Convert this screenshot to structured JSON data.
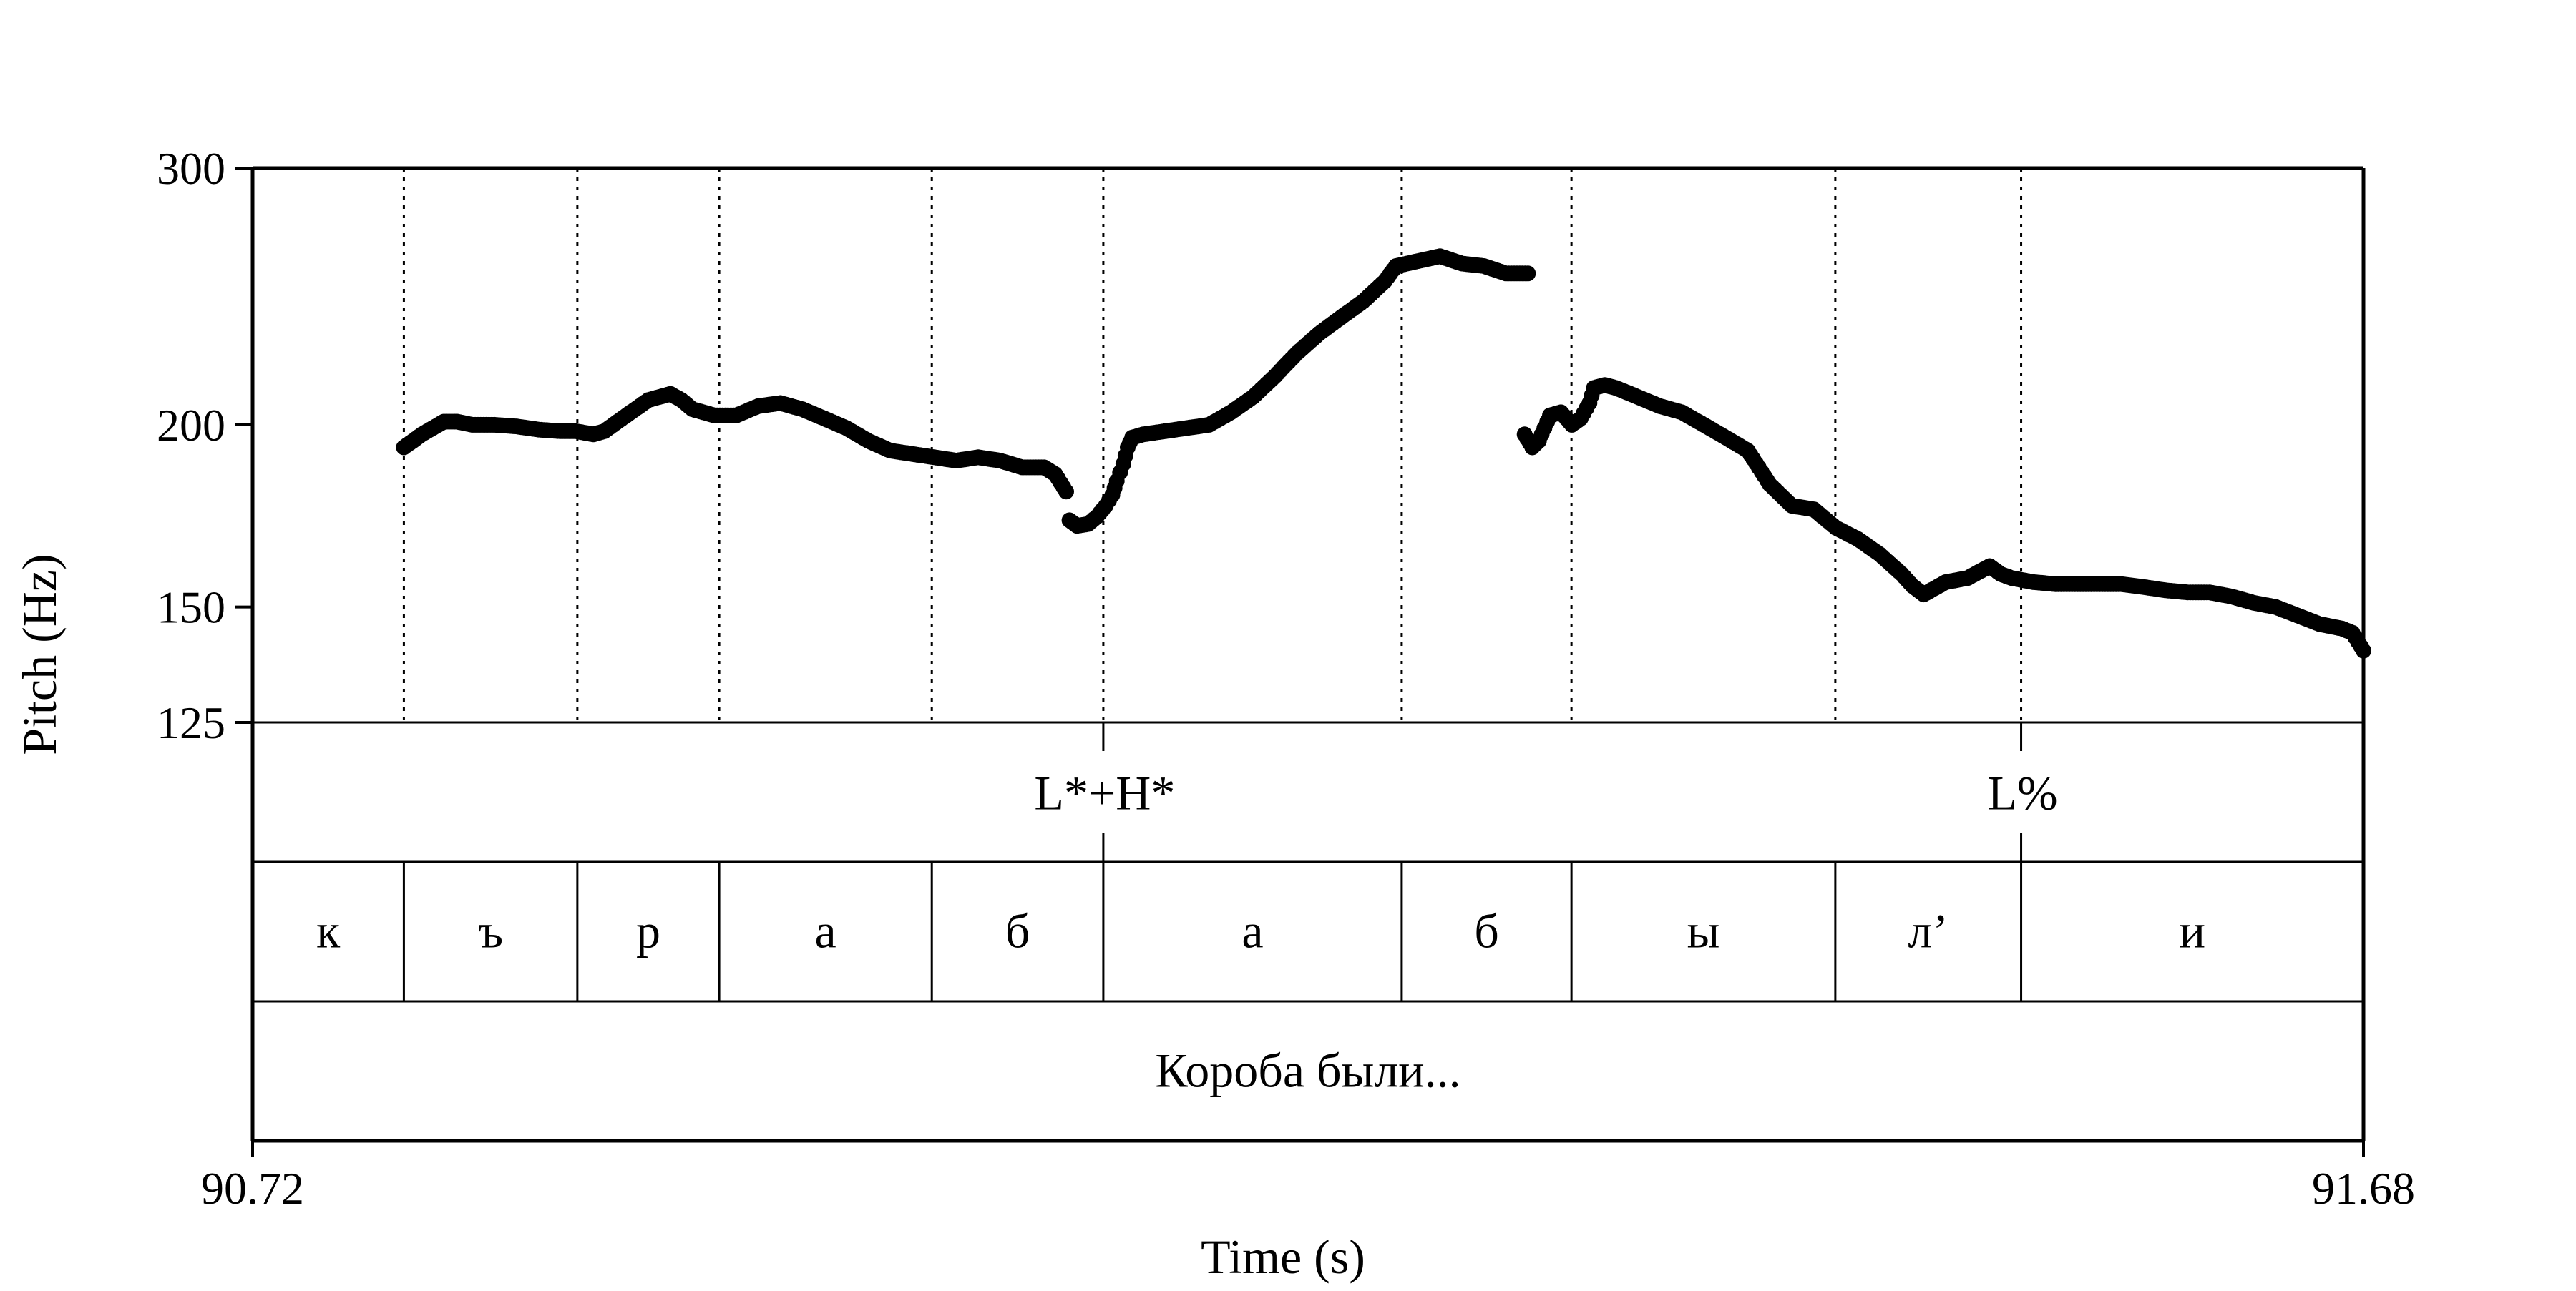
{
  "chart_data": {
    "type": "scatter",
    "xlabel": "Time (s)",
    "ylabel": "Pitch (Hz)",
    "xlim": [
      90.72,
      91.68
    ],
    "ylim": [
      125,
      300
    ],
    "y_scale": "log",
    "x_ticks": [
      "90.72",
      "91.68"
    ],
    "y_ticks": [
      {
        "value": 300,
        "label": "300"
      },
      {
        "value": 200,
        "label": "200"
      },
      {
        "value": 150,
        "label": "150"
      },
      {
        "value": 125,
        "label": "125"
      }
    ],
    "boundaries": [
      90.7888,
      90.8677,
      90.9322,
      91.0289,
      91.1069,
      91.2426,
      91.3198,
      91.4398,
      91.5243
    ],
    "tones": [
      {
        "label": "L*+H*",
        "time": 91.1069
      },
      {
        "label": "L%",
        "time": 91.5243
      }
    ],
    "segments": [
      {
        "label": "к",
        "start": 90.72,
        "end": 90.7888
      },
      {
        "label": "ъ",
        "start": 90.7888,
        "end": 90.8677
      },
      {
        "label": "р",
        "start": 90.8677,
        "end": 90.9322
      },
      {
        "label": "а",
        "start": 90.9322,
        "end": 91.0289
      },
      {
        "label": "б",
        "start": 91.0289,
        "end": 91.1069
      },
      {
        "label": "а",
        "start": 91.1069,
        "end": 91.2426
      },
      {
        "label": "б",
        "start": 91.2426,
        "end": 91.3198
      },
      {
        "label": "ы",
        "start": 91.3198,
        "end": 91.4398
      },
      {
        "label": "л’",
        "start": 91.4398,
        "end": 91.5243
      },
      {
        "label": "и",
        "start": 91.5243,
        "end": 91.68
      }
    ],
    "phrase": "Короба были...",
    "series": [
      {
        "pitch_runs": [
          [
            [
              90.7888,
              193
            ],
            [
              90.793,
              195
            ],
            [
              90.797,
              197
            ],
            [
              90.802,
              199
            ],
            [
              90.807,
              201
            ],
            [
              90.813,
              201
            ],
            [
              90.82,
              200
            ],
            [
              90.83,
              200
            ],
            [
              90.84,
              199.5
            ],
            [
              90.85,
              198.5
            ],
            [
              90.86,
              198
            ],
            [
              90.867,
              198
            ],
            [
              90.875,
              197
            ],
            [
              90.88,
              198
            ],
            [
              90.89,
              203
            ],
            [
              90.9,
              208
            ],
            [
              90.91,
              210
            ],
            [
              90.915,
              208
            ],
            [
              90.92,
              205
            ],
            [
              90.93,
              203
            ],
            [
              90.94,
              203
            ],
            [
              90.95,
              206
            ],
            [
              90.96,
              207
            ],
            [
              90.97,
              205
            ],
            [
              90.98,
              202
            ],
            [
              90.99,
              199
            ],
            [
              91.0,
              195
            ],
            [
              91.01,
              192
            ],
            [
              91.02,
              191
            ],
            [
              91.03,
              190
            ],
            [
              91.04,
              189
            ],
            [
              91.05,
              190
            ],
            [
              91.06,
              189
            ],
            [
              91.07,
              187
            ],
            [
              91.08,
              187
            ],
            [
              91.085,
              185
            ],
            [
              91.09,
              180
            ]
          ],
          [
            [
              91.0915,
              172
            ],
            [
              91.095,
              170.5
            ],
            [
              91.1,
              171
            ],
            [
              91.104,
              173
            ],
            [
              91.108,
              176
            ],
            [
              91.111,
              179
            ],
            [
              91.113,
              183
            ],
            [
              91.116,
              188
            ],
            [
              91.118,
              193
            ],
            [
              91.12,
              196
            ],
            [
              91.125,
              197
            ],
            [
              91.135,
              198
            ],
            [
              91.145,
              199
            ],
            [
              91.155,
              200
            ],
            [
              91.165,
              204
            ],
            [
              91.175,
              209
            ],
            [
              91.185,
              216
            ],
            [
              91.195,
              224
            ],
            [
              91.205,
              231
            ],
            [
              91.215,
              237
            ],
            [
              91.225,
              243
            ],
            [
              91.235,
              251
            ],
            [
              91.24,
              257
            ],
            [
              91.25,
              259
            ],
            [
              91.26,
              261
            ],
            [
              91.27,
              258
            ],
            [
              91.28,
              257
            ],
            [
              91.29,
              254
            ],
            [
              91.3,
              254
            ]
          ],
          [
            [
              91.2985,
              197
            ],
            [
              91.302,
              193
            ],
            [
              91.305,
              195
            ],
            [
              91.31,
              203
            ],
            [
              91.315,
              204
            ],
            [
              91.32,
              200
            ],
            [
              91.324,
              202
            ],
            [
              91.328,
              207
            ],
            [
              91.33,
              212
            ],
            [
              91.335,
              213
            ],
            [
              91.34,
              212
            ],
            [
              91.35,
              209
            ],
            [
              91.36,
              206
            ],
            [
              91.37,
              204
            ],
            [
              91.38,
              200
            ],
            [
              91.39,
              196
            ],
            [
              91.4,
              192
            ],
            [
              91.41,
              182
            ],
            [
              91.42,
              176
            ],
            [
              91.43,
              175
            ],
            [
              91.44,
              170
            ],
            [
              91.45,
              167
            ],
            [
              91.46,
              163
            ],
            [
              91.47,
              158
            ],
            [
              91.475,
              155
            ],
            [
              91.48,
              153
            ],
            [
              91.49,
              156
            ],
            [
              91.5,
              157
            ],
            [
              91.51,
              160
            ],
            [
              91.515,
              158
            ],
            [
              91.52,
              157
            ],
            [
              91.53,
              156
            ],
            [
              91.54,
              155.5
            ],
            [
              91.55,
              155.5
            ],
            [
              91.56,
              155.5
            ],
            [
              91.57,
              155.5
            ],
            [
              91.58,
              154.8
            ],
            [
              91.59,
              154
            ],
            [
              91.6,
              153.5
            ],
            [
              91.61,
              153.5
            ],
            [
              91.62,
              152.5
            ],
            [
              91.63,
              151
            ],
            [
              91.64,
              150
            ],
            [
              91.65,
              148
            ],
            [
              91.66,
              146
            ],
            [
              91.67,
              145
            ],
            [
              91.675,
              144
            ],
            [
              91.68,
              140
            ]
          ]
        ]
      }
    ]
  }
}
